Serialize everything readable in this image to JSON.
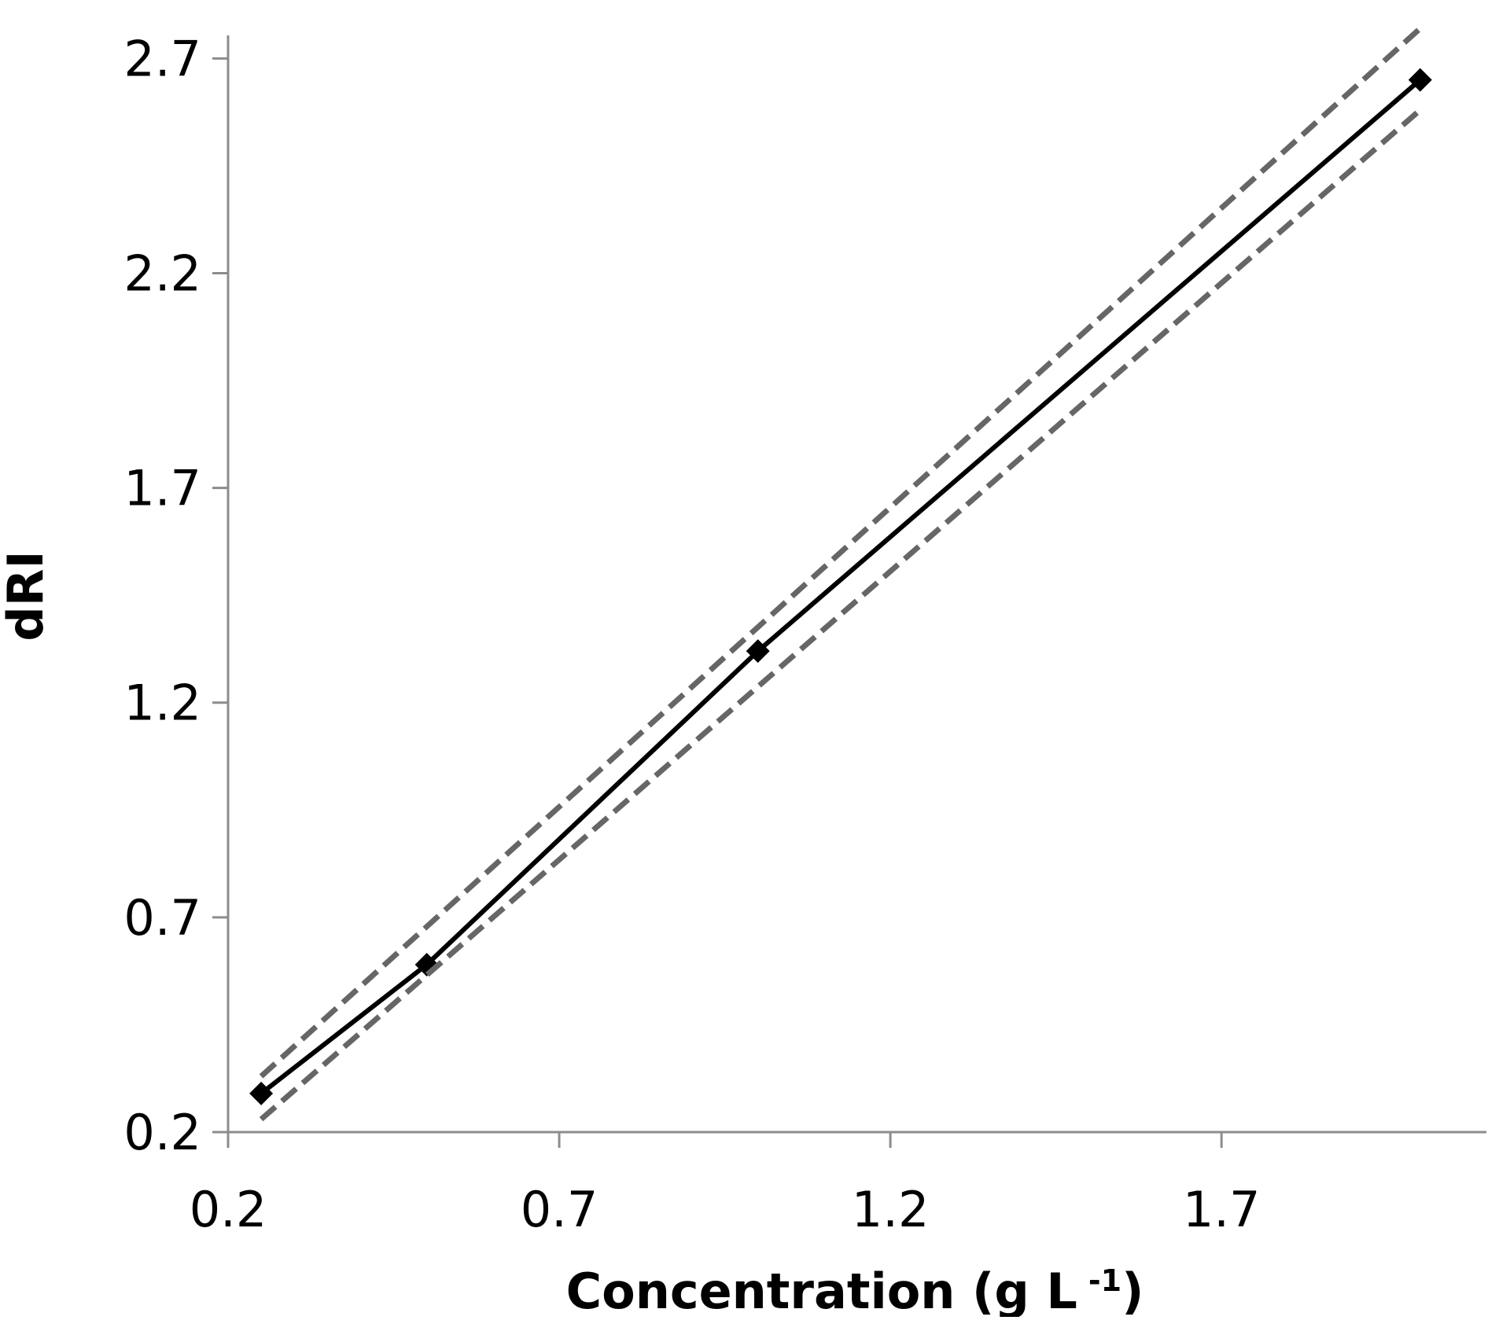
{
  "chart_data": {
    "type": "line",
    "title": "",
    "xlabel": "Concentration (g L",
    "xlabel_superscript": "-1",
    "xlabel_suffix": ")",
    "ylabel": "dRI",
    "xlim": [
      0.2,
      2.1
    ],
    "ylim": [
      0.2,
      2.75
    ],
    "x_ticks": [
      "0.2",
      "0.7",
      "1.2",
      "1.7"
    ],
    "y_ticks": [
      "0.2",
      "0.7",
      "1.2",
      "1.7",
      "2.2",
      "2.7"
    ],
    "grid": false,
    "legend": "none",
    "series": [
      {
        "role": "data",
        "style": "solid",
        "marker": "diamond",
        "color": "#000000",
        "x": [
          0.25,
          0.5,
          1.0,
          2.0
        ],
        "y": [
          0.29,
          0.59,
          1.32,
          2.65
        ]
      },
      {
        "role": "upper-confidence",
        "style": "dashed",
        "marker": "none",
        "color": "#666666",
        "x": [
          0.25,
          2.0
        ],
        "y": [
          0.33,
          2.77
        ]
      },
      {
        "role": "lower-confidence",
        "style": "dashed",
        "marker": "none",
        "color": "#666666",
        "x": [
          0.25,
          2.0
        ],
        "y": [
          0.23,
          2.58
        ]
      }
    ],
    "colors": {
      "axis": "#8c8c8c",
      "data": "#000000",
      "confidence": "#666666"
    }
  }
}
